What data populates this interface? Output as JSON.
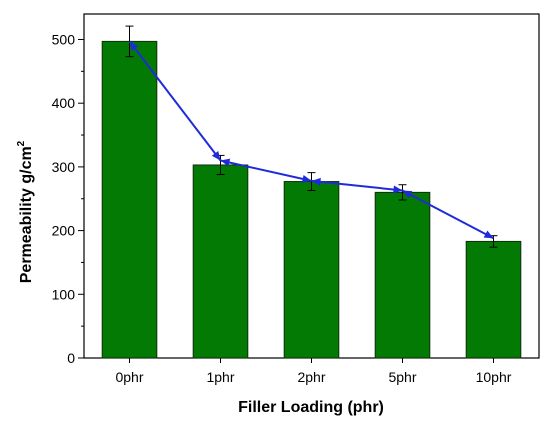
{
  "chart_data": {
    "type": "bar",
    "categories": [
      "0phr",
      "1phr",
      "2phr",
      "5phr",
      "10phr"
    ],
    "values": [
      497,
      303,
      277,
      260,
      183
    ],
    "errors": [
      24,
      15,
      14,
      12,
      9
    ],
    "line_overlay": {
      "values": [
        497,
        310,
        278,
        263,
        188
      ],
      "markers": "arrowheads"
    },
    "title": "",
    "xlabel": "Filler Loading (phr)",
    "ylabel_main": "Permeability g/cm",
    "ylabel_superscript": "2",
    "ylim": [
      0,
      540
    ],
    "yticks": [
      0,
      100,
      200,
      300,
      400,
      500
    ],
    "grid": false,
    "legend": "none",
    "colors": {
      "bar_fill": "#037a03",
      "bar_stroke": "#0f2f0f",
      "line": "#1f2bd8",
      "axis": "#000000"
    }
  }
}
